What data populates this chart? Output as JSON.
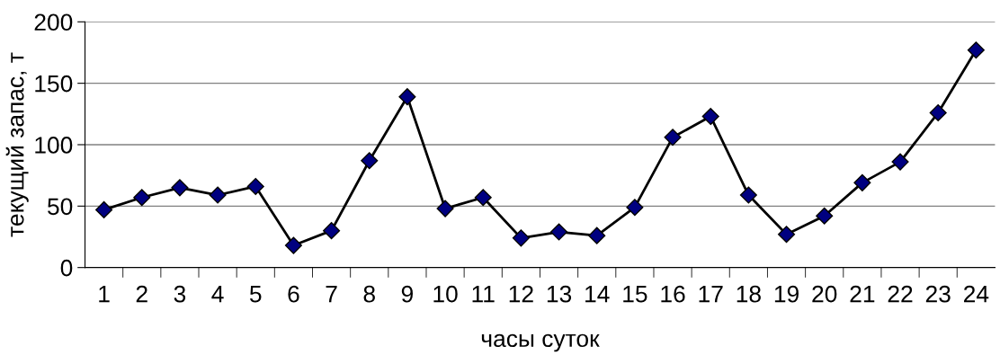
{
  "chart_data": {
    "type": "line",
    "xlabel": "часы суток",
    "ylabel": "текущий запас, т",
    "categories": [
      "1",
      "2",
      "3",
      "4",
      "5",
      "6",
      "7",
      "8",
      "9",
      "10",
      "11",
      "12",
      "13",
      "14",
      "15",
      "16",
      "17",
      "18",
      "19",
      "20",
      "21",
      "22",
      "23",
      "24"
    ],
    "series": [
      {
        "color": "#000080",
        "values": [
          47,
          57,
          65,
          59,
          66,
          18,
          30,
          87,
          139,
          48,
          57,
          24,
          29,
          26,
          49,
          106,
          123,
          59,
          27,
          42,
          69,
          86,
          126,
          177
        ]
      }
    ],
    "ylim": [
      0,
      200
    ],
    "yticks": [
      0,
      50,
      100,
      150,
      200
    ],
    "grid": "y",
    "marker": "diamond",
    "line_style": "solid",
    "legend": false
  }
}
